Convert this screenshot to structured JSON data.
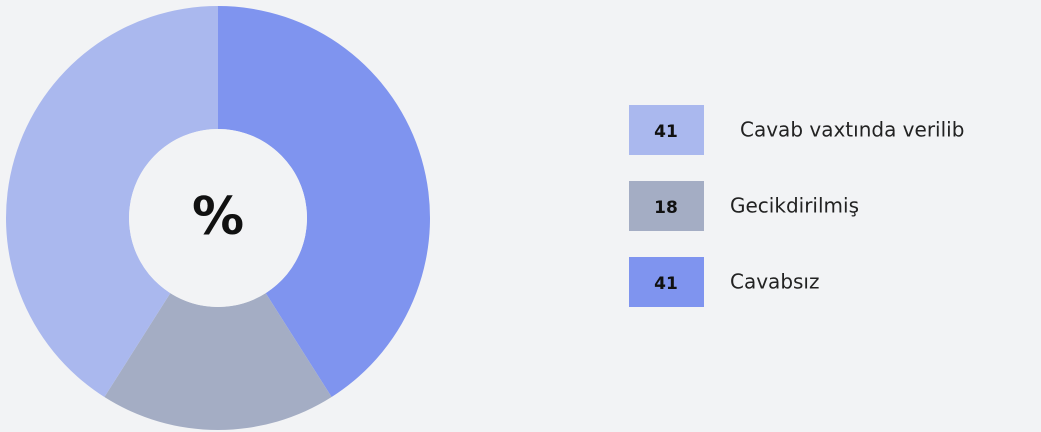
{
  "chart_data": {
    "type": "donut",
    "center_label": "%",
    "categories": [
      "Cavab vaxtında verilib",
      "Gecikdirilmiş",
      "Cavabsız"
    ],
    "values": [
      41,
      18,
      41
    ],
    "colors": [
      "#aab8ee",
      "#a4adc4",
      "#7f94ef"
    ],
    "legend": "right"
  }
}
